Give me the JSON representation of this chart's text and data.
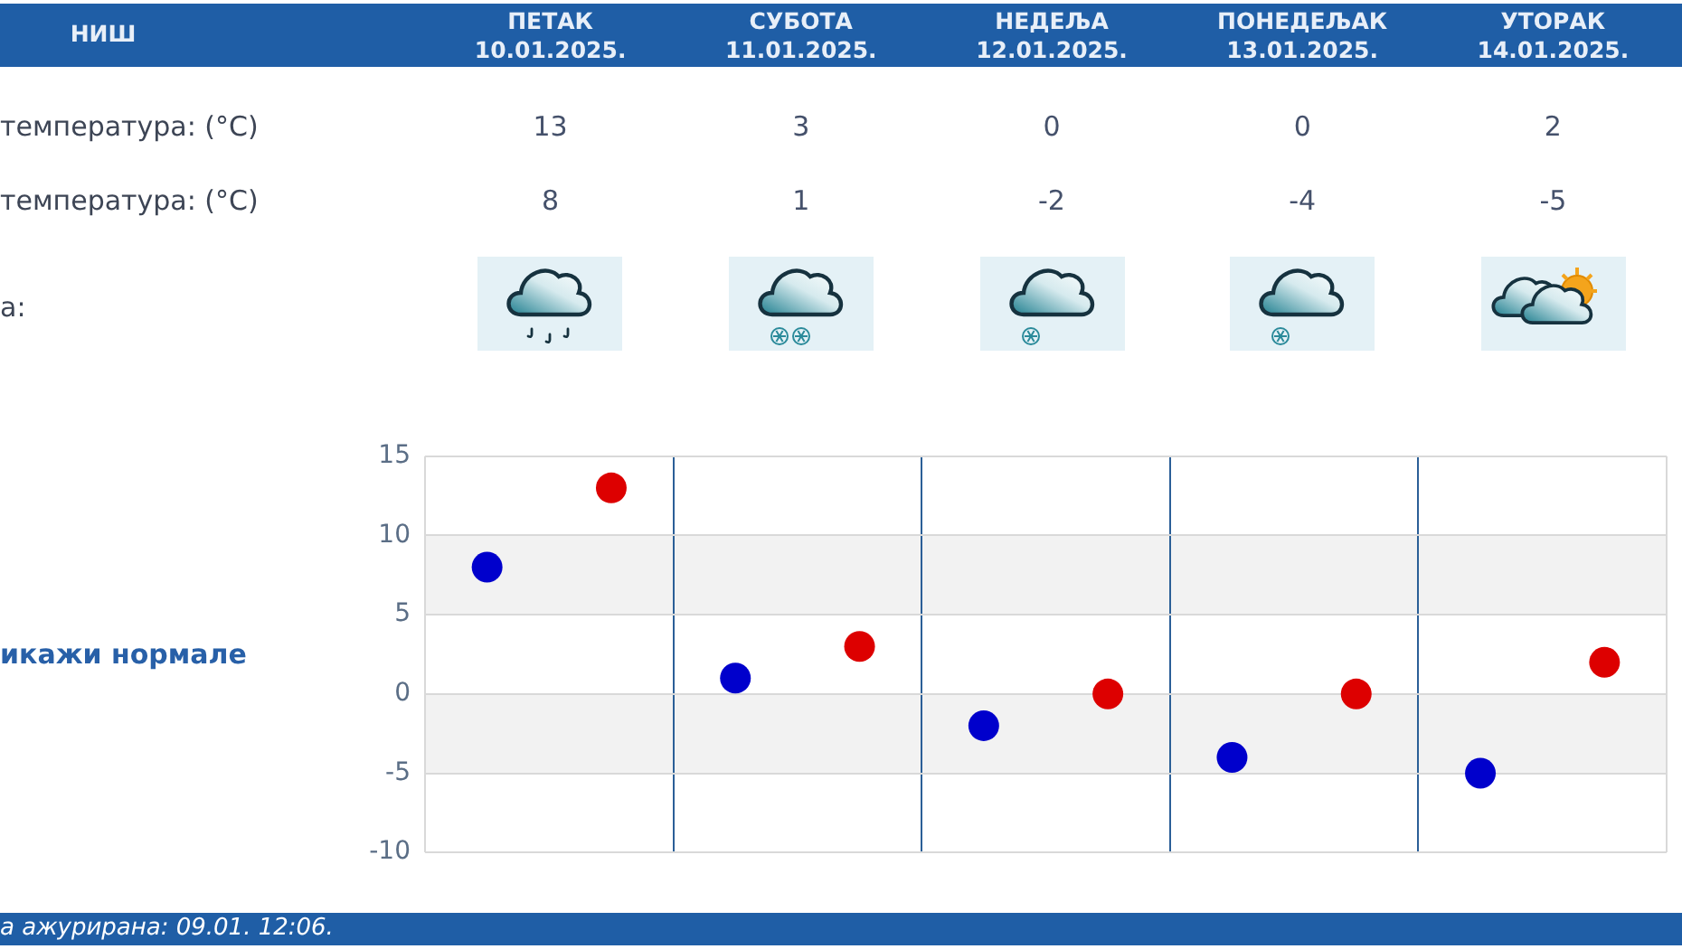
{
  "chart_data": {
    "type": "scatter",
    "title": "НИШ",
    "categories": [
      null,
      null,
      null,
      null,
      null
    ],
    "series": [
      {
        "color": "#dd0000",
        "values": [
          13,
          3,
          0,
          0,
          2
        ]
      },
      {
        "color": "#0000cc",
        "values": [
          8,
          1,
          -2,
          -4,
          -5
        ]
      }
    ],
    "ylim": [
      -10,
      15
    ],
    "yticks": [
      -10,
      -5,
      0,
      5,
      10,
      15
    ],
    "grid": true,
    "bands": [
      {
        "axis": "y",
        "from": 5,
        "to": 10,
        "color": "#f2f2f2"
      },
      {
        "axis": "y",
        "from": -5,
        "to": 0,
        "color": "#f2f2f2"
      }
    ],
    "marker": "circle",
    "data_labels": true,
    "annotations": [
      "ПЕТАК 10.01.2025.",
      "СУБОТА 11.01.2025.",
      "НЕДЕЉА 12.01.2025.",
      "ПОНЕДЕЉАК 13.01.2025.",
      "УТОРАК 14.01.2025.",
      "температура: (°C)",
      "температура: (°C)",
      "а:",
      "икажи нормале",
      "а ажурирана: 09.01. 12:06."
    ]
  }
}
